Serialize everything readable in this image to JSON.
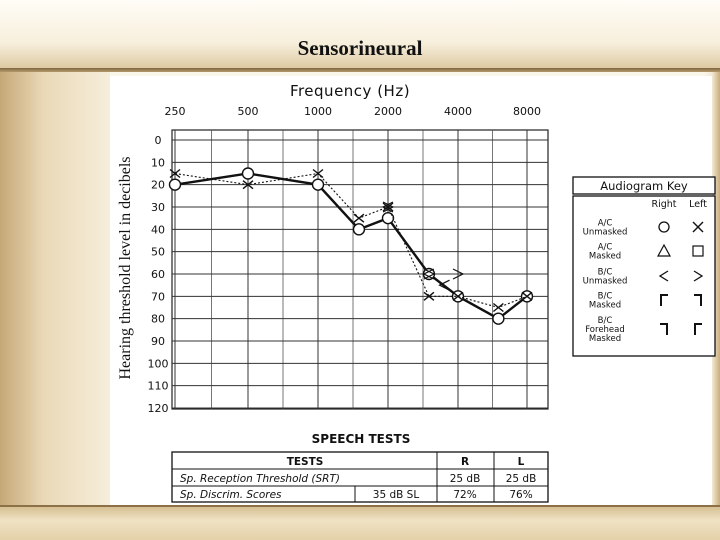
{
  "slide": {
    "title": "Sensorineural"
  },
  "chart_data": {
    "type": "line",
    "title": "Frequency (Hz)",
    "xlabel": "Frequency (Hz)",
    "ylabel": "Hearing threshold level in decibels",
    "x_ticks": [
      "250",
      "500",
      "1000",
      "2000",
      "4000",
      "8000"
    ],
    "y_ticks": [
      "0",
      "10",
      "20",
      "30",
      "40",
      "50",
      "60",
      "70",
      "80",
      "90",
      "100",
      "110",
      "120"
    ],
    "ylim": [
      0,
      120
    ],
    "y_inverted": true,
    "series": [
      {
        "name": "A/C Unmasked Right",
        "symbol": "O",
        "line": "solid",
        "points": [
          [
            250,
            20
          ],
          [
            500,
            15
          ],
          [
            1000,
            20
          ],
          [
            1500,
            40
          ],
          [
            2000,
            35
          ],
          [
            3000,
            60
          ],
          [
            4000,
            70
          ],
          [
            6000,
            80
          ],
          [
            8000,
            70
          ]
        ]
      },
      {
        "name": "A/C Unmasked Left",
        "symbol": "X",
        "line": "dotted",
        "points": [
          [
            250,
            15
          ],
          [
            500,
            20
          ],
          [
            1000,
            15
          ],
          [
            1500,
            35
          ],
          [
            2000,
            30
          ],
          [
            3000,
            70
          ],
          [
            4000,
            70
          ],
          [
            6000,
            75
          ],
          [
            8000,
            70
          ]
        ]
      },
      {
        "name": "B/C Unmasked Right",
        "symbol": "<",
        "line": "none",
        "points": [
          [
            2000,
            30
          ],
          [
            3000,
            60
          ],
          [
            3500,
            65
          ]
        ]
      },
      {
        "name": "B/C Unmasked Left",
        "symbol": ">",
        "line": "none",
        "points": [
          [
            2000,
            30
          ],
          [
            3000,
            60
          ],
          [
            4000,
            60
          ]
        ]
      }
    ]
  },
  "key": {
    "title": "Audiogram Key",
    "col_right": "Right",
    "col_left": "Left",
    "rows": [
      {
        "label": [
          "A/C",
          "Unmasked"
        ],
        "right_icon": "circle-icon",
        "left_icon": "x-icon"
      },
      {
        "label": [
          "A/C",
          "Masked"
        ],
        "right_icon": "triangle-icon",
        "left_icon": "square-icon"
      },
      {
        "label": [
          "B/C",
          "Unmasked"
        ],
        "right_icon": "less-than-icon",
        "left_icon": "greater-than-icon"
      },
      {
        "label": [
          "B/C",
          "Masked"
        ],
        "right_icon": "left-bracket-icon",
        "left_icon": "right-bracket-icon"
      },
      {
        "label": [
          "B/C",
          "Forehead",
          "Masked"
        ],
        "right_icon": "right-bracket-icon",
        "left_icon": "left-bracket-icon"
      }
    ]
  },
  "speech_tests": {
    "heading": "SPEECH TESTS",
    "col_tests": "TESTS",
    "col_r": "R",
    "col_l": "L",
    "rows": [
      {
        "label": "Sp. Reception Threshold (SRT)",
        "extra": "",
        "r": "25 dB",
        "l": "25 dB"
      },
      {
        "label": "Sp. Discrim. Scores",
        "extra": "35 dB SL",
        "r": "72%",
        "l": "76%"
      }
    ]
  }
}
